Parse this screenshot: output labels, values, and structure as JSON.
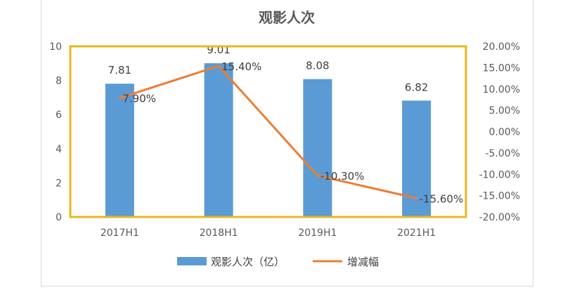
{
  "chart_data": {
    "type": "bar",
    "title": "观影人次",
    "categories": [
      "2017H1",
      "2018H1",
      "2019H1",
      "2021H1"
    ],
    "series": [
      {
        "name": "观影人次（亿）",
        "type": "bar",
        "axis": "left",
        "values": [
          7.81,
          9.01,
          8.08,
          6.82
        ],
        "labels": [
          "7.81",
          "9.01",
          "8.08",
          "6.82"
        ],
        "color": "#5b9bd5"
      },
      {
        "name": "增减幅",
        "type": "line",
        "axis": "right",
        "values": [
          7.9,
          15.4,
          -10.3,
          -15.6
        ],
        "labels": [
          "7.90%",
          "15.40%",
          "-10.30%",
          "-15.60%"
        ],
        "color": "#ed7d31"
      }
    ],
    "y_left": {
      "min": 0,
      "max": 10,
      "ticks": [
        "0",
        "2",
        "4",
        "6",
        "8",
        "10"
      ],
      "tick_values": [
        0,
        2,
        4,
        6,
        8,
        10
      ]
    },
    "y_right": {
      "min": -20,
      "max": 20,
      "ticks": [
        "-20.00%",
        "-15.00%",
        "-10.00%",
        "-5.00%",
        "0.00%",
        "5.00%",
        "10.00%",
        "15.00%",
        "20.00%"
      ],
      "tick_values": [
        -20,
        -15,
        -10,
        -5,
        0,
        5,
        10,
        15,
        20
      ]
    },
    "legend_position": "bottom",
    "plot_border_color": "#e6b91e"
  }
}
